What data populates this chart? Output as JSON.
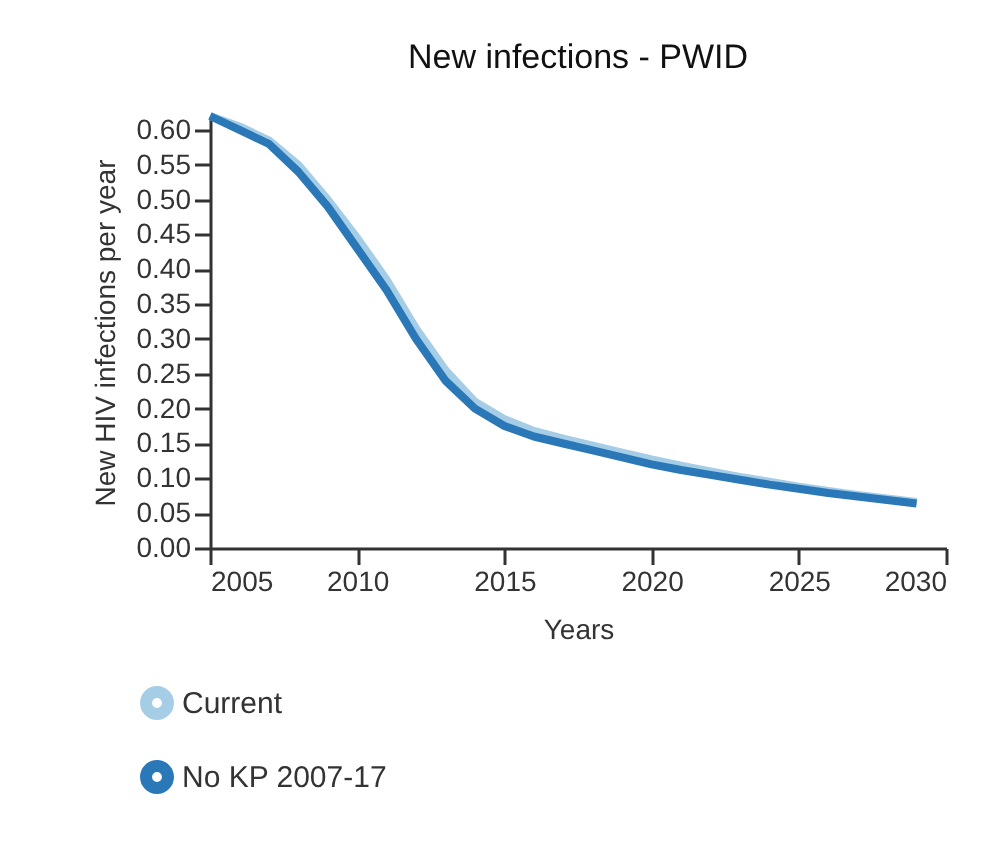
{
  "chart_data": {
    "type": "line",
    "title": "New infections - PWID",
    "xlabel": "Years",
    "ylabel": "New HIV infections per year",
    "x": [
      2005,
      2006,
      2007,
      2008,
      2009,
      2010,
      2011,
      2012,
      2013,
      2014,
      2015,
      2016,
      2017,
      2018,
      2019,
      2020,
      2021,
      2022,
      2023,
      2024,
      2025,
      2026,
      2027,
      2028,
      2029
    ],
    "series": [
      {
        "name": "Current",
        "color": "#a6cde6",
        "values": [
          0.62,
          0.605,
          0.585,
          0.55,
          0.5,
          0.445,
          0.385,
          0.315,
          0.255,
          0.21,
          0.185,
          0.168,
          0.157,
          0.147,
          0.137,
          0.127,
          0.118,
          0.11,
          0.102,
          0.095,
          0.088,
          0.082,
          0.076,
          0.071,
          0.066
        ]
      },
      {
        "name": "No KP 2007-17",
        "color": "#2a78b8",
        "values": [
          0.62,
          0.6,
          0.58,
          0.54,
          0.49,
          0.43,
          0.37,
          0.3,
          0.24,
          0.2,
          0.175,
          0.16,
          0.15,
          0.14,
          0.13,
          0.12,
          0.112,
          0.105,
          0.098,
          0.091,
          0.085,
          0.079,
          0.074,
          0.069,
          0.064
        ]
      }
    ],
    "xlim": [
      2005,
      2030
    ],
    "xticks": [
      2005,
      2010,
      2015,
      2020,
      2025,
      2030
    ],
    "ylim": [
      0,
      0.62
    ],
    "yticks": [
      {
        "value": 0,
        "label": "0.00"
      },
      0.05,
      {
        "value": 0.1,
        "label": "0.10"
      },
      0.15,
      {
        "value": 0.2,
        "label": "0.20"
      },
      0.25,
      {
        "value": 0.3,
        "label": "0.30"
      },
      0.35,
      {
        "value": 0.4,
        "label": "0.40"
      },
      0.45,
      {
        "value": 0.5,
        "label": "0.50"
      },
      0.55,
      {
        "value": 0.6,
        "label": "0.60"
      }
    ],
    "grid": false,
    "legend": "bottom left",
    "marker": "none",
    "line_style": "solid"
  }
}
